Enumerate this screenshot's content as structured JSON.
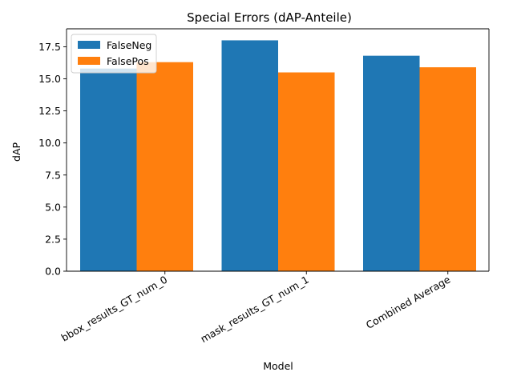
{
  "chart_data": {
    "type": "bar",
    "title": "Special Errors (dAP-Anteile)",
    "xlabel": "Model",
    "ylabel": "dAP",
    "categories": [
      "bbox_results_GT_num_0",
      "mask_results_GT_num_1",
      "Combined Average"
    ],
    "series": [
      {
        "name": "FalseNeg",
        "values": [
          15.8,
          18.0,
          16.8
        ],
        "color": "#1f77b4"
      },
      {
        "name": "FalsePos",
        "values": [
          16.3,
          15.5,
          15.9
        ],
        "color": "#ff7f0e"
      }
    ],
    "ylim": [
      0,
      18.9
    ],
    "yticks": [
      "0.0",
      "2.5",
      "5.0",
      "7.5",
      "10.0",
      "12.5",
      "15.0",
      "17.5"
    ],
    "x_tick_rotation_deg": 30,
    "grid": false,
    "legend": "top-left"
  }
}
